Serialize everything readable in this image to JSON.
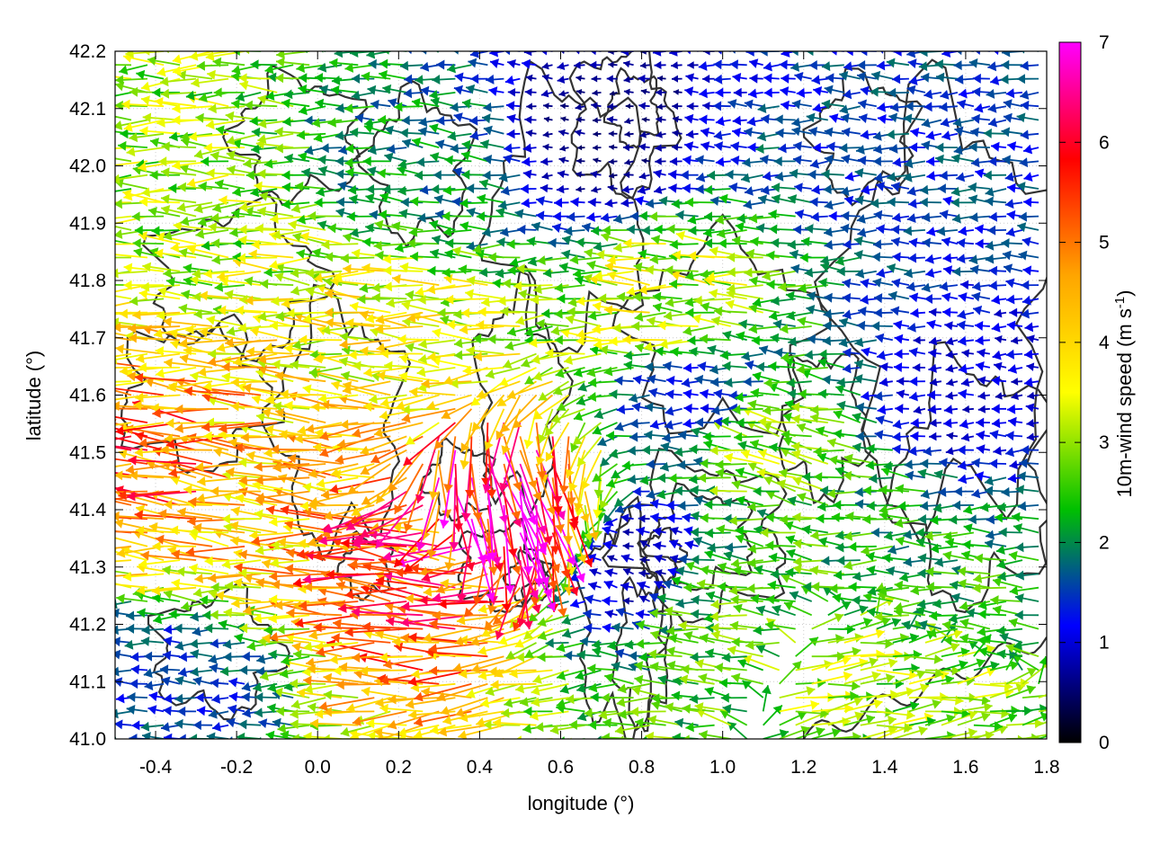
{
  "chart_data": {
    "type": "vector-field",
    "xlabel": "longitude (°)",
    "ylabel": "latitude (°)",
    "xlim": [
      -0.5,
      1.8
    ],
    "ylim": [
      41.0,
      42.2
    ],
    "xticks": [
      "-0.4",
      "-0.2",
      "0.0",
      "0.2",
      "0.4",
      "0.6",
      "0.8",
      "1.0",
      "1.2",
      "1.4",
      "1.6",
      "1.8"
    ],
    "yticks": [
      "41.0",
      "41.1",
      "41.2",
      "41.3",
      "41.4",
      "41.5",
      "41.6",
      "41.7",
      "41.8",
      "41.9",
      "42.0",
      "42.1",
      "42.2"
    ],
    "grid": true,
    "colorbar": {
      "label": "10m-wind speed (m s-1)",
      "range": [
        0,
        7
      ],
      "ticks": [
        "0",
        "1",
        "2",
        "3",
        "4",
        "5",
        "6",
        "7"
      ],
      "palette": [
        "#000000",
        "#0000ff",
        "#00c000",
        "#ffff00",
        "#ffa500",
        "#ff0000",
        "#ff00ff"
      ]
    },
    "wind_regions": [
      {
        "lon": -0.35,
        "lat": 41.45,
        "u": -4.8,
        "v": 0.3,
        "speed": 5.0
      },
      {
        "lon": -0.1,
        "lat": 41.45,
        "u": -4.0,
        "v": 0.3,
        "speed": 4.2
      },
      {
        "lon": 0.2,
        "lat": 41.7,
        "u": -3.5,
        "v": 0.2,
        "speed": 3.6
      },
      {
        "lon": 0.3,
        "lat": 41.3,
        "u": -4.8,
        "v": 0.6,
        "speed": 5.2
      },
      {
        "lon": 0.45,
        "lat": 41.4,
        "u": 1.5,
        "v": -5.0,
        "speed": 6.5
      },
      {
        "lon": 0.9,
        "lat": 41.75,
        "u": -3.2,
        "v": 0.1,
        "speed": 3.3
      },
      {
        "lon": 1.15,
        "lat": 41.5,
        "u": -2.5,
        "v": 0.5,
        "speed": 2.8
      },
      {
        "lon": 0.95,
        "lat": 41.6,
        "u": -1.2,
        "v": 0.0,
        "speed": 1.3
      },
      {
        "lon": 0.3,
        "lat": 42.0,
        "u": -1.8,
        "v": 0.1,
        "speed": 2.0
      },
      {
        "lon": 0.7,
        "lat": 42.05,
        "u": -0.3,
        "v": 0.0,
        "speed": 0.6
      },
      {
        "lon": 1.45,
        "lat": 42.0,
        "u": -1.2,
        "v": 0.0,
        "speed": 1.5
      },
      {
        "lon": 1.6,
        "lat": 41.6,
        "u": -0.8,
        "v": 0.0,
        "speed": 1.0
      },
      {
        "lon": 1.5,
        "lat": 41.3,
        "u": -2.2,
        "v": 0.0,
        "speed": 2.3
      },
      {
        "lon": 1.35,
        "lat": 41.1,
        "u": 2.8,
        "v": 0.3,
        "speed": 3.0
      },
      {
        "lon": -0.35,
        "lat": 41.95,
        "u": -3.0,
        "v": 0.0,
        "speed": 3.0
      },
      {
        "lon": -0.35,
        "lat": 41.1,
        "u": -1.5,
        "v": 0.0,
        "speed": 1.5
      },
      {
        "lon": 1.0,
        "lat": 41.2,
        "u": -2.5,
        "v": 0.2,
        "speed": 2.6
      },
      {
        "lon": 0.8,
        "lat": 41.3,
        "u": -0.6,
        "v": 0.2,
        "speed": 0.8
      }
    ]
  }
}
